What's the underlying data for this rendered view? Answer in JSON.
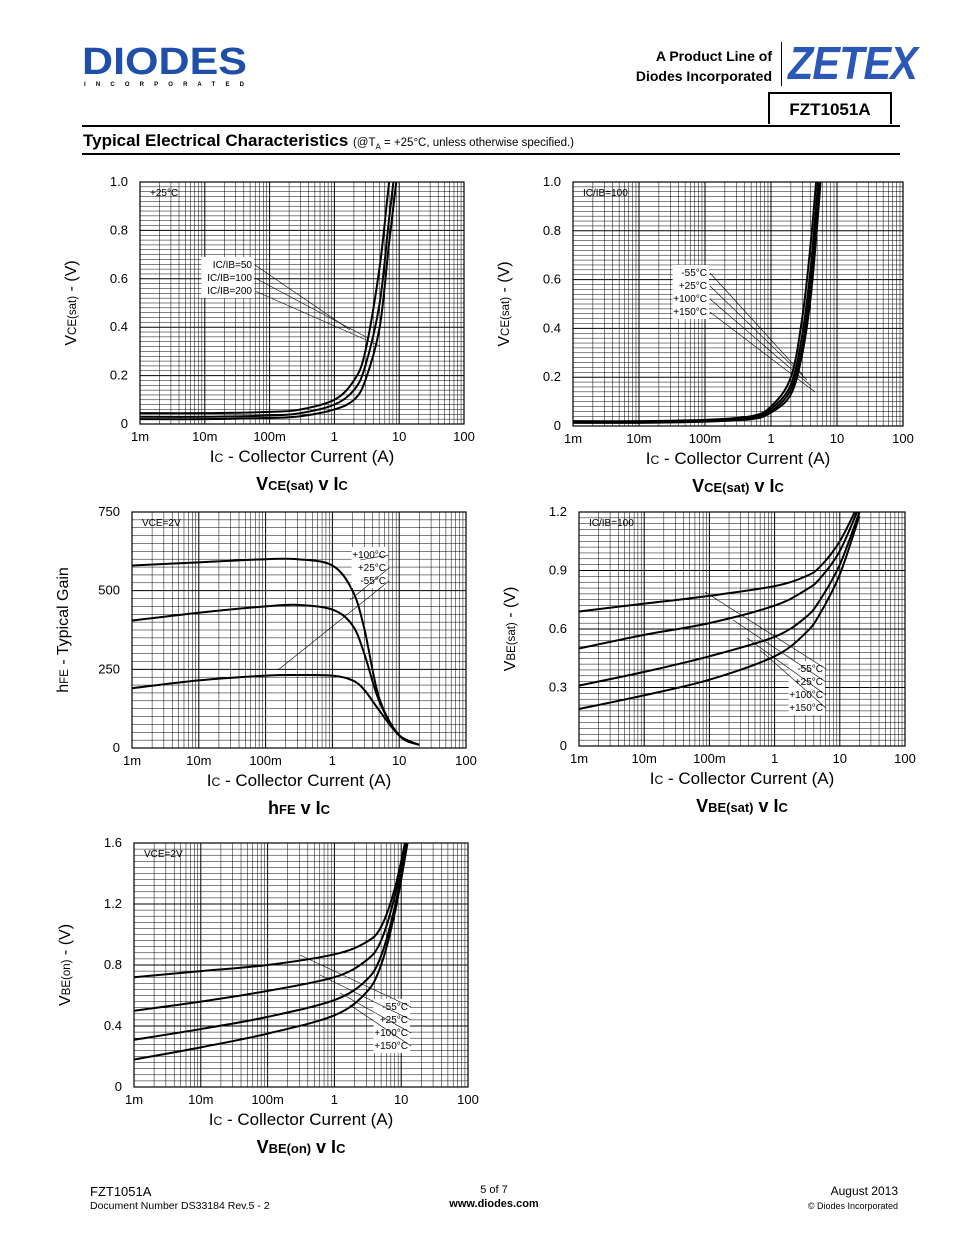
{
  "header": {
    "logo_text": "DIODES",
    "logo_subtext": "I N C O R P O R A T E D",
    "product_line_1": "A Product Line of",
    "product_line_2": "Diodes Incorporated",
    "brand": "ZETEX",
    "part_number": "FZT1051A"
  },
  "section": {
    "title": "Typical Electrical Characteristics",
    "condition_prefix": "(@T",
    "condition_sub": "A",
    "condition_suffix": " = +25°C, unless otherwise specified.)"
  },
  "colors": {
    "brand_blue": "#2b57b7",
    "logo_blue": "#1f4fa8",
    "grid": "#000000",
    "curve": "#000000"
  },
  "chart_data": [
    {
      "id": "c1",
      "type": "line",
      "title_main": "V",
      "title_sub": "CE(sat)",
      "title_rest": " v I",
      "title_sub2": "C",
      "ylabel_main": "V",
      "ylabel_sub": "CE(sat)",
      "ylabel_rest": " - (V)",
      "xlabel_main": "I",
      "xlabel_sub": "C",
      "xlabel_rest": " - Collector Current (A)",
      "x_scale": "log",
      "xlim": [
        0.001,
        100
      ],
      "ylim": [
        0,
        1.0
      ],
      "x_ticks": [
        "1m",
        "10m",
        "100m",
        "1",
        "10",
        "100"
      ],
      "y_ticks": [
        "0",
        "0.2",
        "0.4",
        "0.6",
        "0.8",
        "1.0"
      ],
      "y_tick_values": [
        0,
        0.2,
        0.4,
        0.6,
        0.8,
        1.0
      ],
      "corner_label": "+25°C",
      "legend": [
        "IC/IB=50",
        "IC/IB=100",
        "IC/IB=200"
      ],
      "series": [
        {
          "name": "IC/IB=50",
          "x": [
            0.001,
            0.01,
            0.1,
            0.3,
            1,
            2,
            3,
            5,
            7,
            10
          ],
          "y": [
            0.045,
            0.045,
            0.05,
            0.06,
            0.1,
            0.18,
            0.3,
            0.65,
            1.0,
            1.3
          ]
        },
        {
          "name": "IC/IB=100",
          "x": [
            0.001,
            0.01,
            0.1,
            0.3,
            1,
            2,
            3,
            5,
            7,
            10
          ],
          "y": [
            0.03,
            0.03,
            0.035,
            0.045,
            0.08,
            0.14,
            0.24,
            0.5,
            0.85,
            1.2
          ]
        },
        {
          "name": "IC/IB=200",
          "x": [
            0.001,
            0.01,
            0.1,
            0.3,
            1,
            2,
            3,
            5,
            7,
            10
          ],
          "y": [
            0.02,
            0.02,
            0.025,
            0.032,
            0.06,
            0.1,
            0.18,
            0.4,
            0.75,
            1.1
          ]
        }
      ]
    },
    {
      "id": "c2",
      "type": "line",
      "title_main": "V",
      "title_sub": "CE(sat)",
      "title_rest": " v I",
      "title_sub2": "C",
      "ylabel_main": "V",
      "ylabel_sub": "CE(sat)",
      "ylabel_rest": " - (V)",
      "xlabel_main": "I",
      "xlabel_sub": "C",
      "xlabel_rest": " - Collector Current (A)",
      "x_scale": "log",
      "xlim": [
        0.001,
        100
      ],
      "ylim": [
        0,
        1.0
      ],
      "x_ticks": [
        "1m",
        "10m",
        "100m",
        "1",
        "10",
        "100"
      ],
      "y_ticks": [
        "0",
        "0.2",
        "0.4",
        "0.6",
        "0.8",
        "1.0"
      ],
      "y_tick_values": [
        0,
        0.2,
        0.4,
        0.6,
        0.8,
        1.0
      ],
      "corner_label": "IC/IB=100",
      "legend": [
        "-55°C",
        "+25°C",
        "+100°C",
        "+150°C"
      ],
      "series": [
        {
          "name": "-55°C",
          "x": [
            0.001,
            0.01,
            0.1,
            0.5,
            1,
            2,
            3,
            4,
            5,
            6
          ],
          "y": [
            0.02,
            0.02,
            0.025,
            0.04,
            0.08,
            0.2,
            0.45,
            0.75,
            1.05,
            1.3
          ]
        },
        {
          "name": "+25°C",
          "x": [
            0.001,
            0.01,
            0.1,
            0.5,
            1,
            2,
            3,
            4,
            5,
            6
          ],
          "y": [
            0.018,
            0.018,
            0.022,
            0.035,
            0.07,
            0.17,
            0.38,
            0.65,
            0.95,
            1.2
          ]
        },
        {
          "name": "+100°C",
          "x": [
            0.001,
            0.01,
            0.1,
            0.5,
            1,
            2,
            3,
            4,
            5,
            6
          ],
          "y": [
            0.015,
            0.015,
            0.02,
            0.03,
            0.06,
            0.15,
            0.33,
            0.58,
            0.88,
            1.15
          ]
        },
        {
          "name": "+150°C",
          "x": [
            0.001,
            0.01,
            0.1,
            0.5,
            1,
            2,
            3,
            4,
            5,
            6
          ],
          "y": [
            0.013,
            0.013,
            0.018,
            0.028,
            0.055,
            0.13,
            0.3,
            0.53,
            0.82,
            1.1
          ]
        }
      ]
    },
    {
      "id": "c3",
      "type": "line",
      "title_main": "h",
      "title_sub": "FE",
      "title_rest": " v I",
      "title_sub2": "C",
      "ylabel_main": "h",
      "ylabel_sub": "FE",
      "ylabel_rest": " - Typical Gain",
      "xlabel_main": "I",
      "xlabel_sub": "C",
      "xlabel_rest": " - Collector Current (A)",
      "x_scale": "log",
      "xlim": [
        0.001,
        100
      ],
      "ylim": [
        0,
        750
      ],
      "x_ticks": [
        "1m",
        "10m",
        "100m",
        "1",
        "10",
        "100"
      ],
      "y_ticks": [
        "0",
        "250",
        "500",
        "750"
      ],
      "y_tick_values": [
        0,
        250,
        500,
        750
      ],
      "corner_label": "VCE=2V",
      "legend": [
        "+100°C",
        "+25°C",
        "-55°C"
      ],
      "series": [
        {
          "name": "+100°C",
          "x": [
            0.001,
            0.01,
            0.1,
            0.3,
            1,
            2,
            3,
            5,
            10,
            20
          ],
          "y": [
            580,
            590,
            600,
            600,
            580,
            500,
            380,
            160,
            40,
            10
          ]
        },
        {
          "name": "+25°C",
          "x": [
            0.001,
            0.01,
            0.1,
            0.3,
            1,
            2,
            3,
            5,
            10,
            20
          ],
          "y": [
            405,
            430,
            450,
            455,
            440,
            390,
            300,
            150,
            40,
            10
          ]
        },
        {
          "name": "-55°C",
          "x": [
            0.001,
            0.01,
            0.1,
            0.3,
            1,
            2,
            3,
            5,
            10,
            20
          ],
          "y": [
            190,
            215,
            230,
            232,
            230,
            215,
            185,
            120,
            40,
            10
          ]
        }
      ]
    },
    {
      "id": "c4",
      "type": "line",
      "title_main": "V",
      "title_sub": "BE(sat)",
      "title_rest": " v I",
      "title_sub2": "C",
      "ylabel_main": "V",
      "ylabel_sub": "BE(sat)",
      "ylabel_rest": " - (V)",
      "xlabel_main": "I",
      "xlabel_sub": "C",
      "xlabel_rest": " - Collector Current (A)",
      "x_scale": "log",
      "xlim": [
        0.001,
        100
      ],
      "ylim": [
        0,
        1.2
      ],
      "x_ticks": [
        "1m",
        "10m",
        "100m",
        "1",
        "10",
        "100"
      ],
      "y_ticks": [
        "0",
        "0.3",
        "0.6",
        "0.9",
        "1.2"
      ],
      "y_tick_values": [
        0,
        0.3,
        0.6,
        0.9,
        1.2
      ],
      "corner_label": "IC/IB=100",
      "legend": [
        "-55°C",
        "+25°C",
        "+100°C",
        "+150°C"
      ],
      "series": [
        {
          "name": "-55°C",
          "x": [
            0.001,
            0.01,
            0.1,
            1,
            3,
            5,
            10,
            20
          ],
          "y": [
            0.69,
            0.73,
            0.77,
            0.82,
            0.87,
            0.92,
            1.05,
            1.25
          ]
        },
        {
          "name": "+25°C",
          "x": [
            0.001,
            0.01,
            0.1,
            1,
            3,
            5,
            10,
            20
          ],
          "y": [
            0.5,
            0.57,
            0.63,
            0.72,
            0.8,
            0.86,
            1.0,
            1.23
          ]
        },
        {
          "name": "+100°C",
          "x": [
            0.001,
            0.01,
            0.1,
            1,
            3,
            5,
            10,
            20
          ],
          "y": [
            0.31,
            0.38,
            0.46,
            0.56,
            0.66,
            0.75,
            0.93,
            1.2
          ]
        },
        {
          "name": "+150°C",
          "x": [
            0.001,
            0.01,
            0.1,
            1,
            3,
            5,
            10,
            20
          ],
          "y": [
            0.19,
            0.26,
            0.34,
            0.46,
            0.58,
            0.68,
            0.88,
            1.18
          ]
        }
      ]
    },
    {
      "id": "c5",
      "type": "line",
      "title_main": "V",
      "title_sub": "BE(on)",
      "title_rest": " v I",
      "title_sub2": "C",
      "ylabel_main": "V",
      "ylabel_sub": "BE(on)",
      "ylabel_rest": " - (V)",
      "xlabel_main": "I",
      "xlabel_sub": "C",
      "xlabel_rest": " - Collector Current (A)",
      "x_scale": "log",
      "xlim": [
        0.001,
        100
      ],
      "ylim": [
        0,
        1.6
      ],
      "x_ticks": [
        "1m",
        "10m",
        "100m",
        "1",
        "10",
        "100"
      ],
      "y_ticks": [
        "0",
        "0.4",
        "0.8",
        "1.2",
        "1.6"
      ],
      "y_tick_values": [
        0,
        0.4,
        0.8,
        1.2,
        1.6
      ],
      "corner_label": "VCE=2V",
      "legend": [
        "-55°C",
        "+25°C",
        "+100°C",
        "+150°C"
      ],
      "series": [
        {
          "name": "-55°C",
          "x": [
            0.001,
            0.01,
            0.1,
            1,
            3,
            5,
            8,
            12,
            15
          ],
          "y": [
            0.72,
            0.76,
            0.8,
            0.87,
            0.95,
            1.05,
            1.3,
            1.65,
            1.9
          ]
        },
        {
          "name": "+25°C",
          "x": [
            0.001,
            0.01,
            0.1,
            1,
            3,
            5,
            8,
            12,
            15
          ],
          "y": [
            0.5,
            0.56,
            0.63,
            0.72,
            0.83,
            0.96,
            1.25,
            1.62,
            1.88
          ]
        },
        {
          "name": "+100°C",
          "x": [
            0.001,
            0.01,
            0.1,
            1,
            3,
            5,
            8,
            12,
            15
          ],
          "y": [
            0.31,
            0.38,
            0.46,
            0.57,
            0.7,
            0.86,
            1.18,
            1.58,
            1.85
          ]
        },
        {
          "name": "+150°C",
          "x": [
            0.001,
            0.01,
            0.1,
            1,
            3,
            5,
            8,
            12,
            15
          ],
          "y": [
            0.18,
            0.26,
            0.35,
            0.47,
            0.62,
            0.8,
            1.14,
            1.56,
            1.83
          ]
        }
      ]
    }
  ],
  "footer": {
    "part": "FZT1051A",
    "doc_number": "Document Number DS33184 Rev.5 - 2",
    "page": "5 of 7",
    "url": "www.diodes.com",
    "date": "August 2013",
    "copyright": "© Diodes Incorporated"
  }
}
